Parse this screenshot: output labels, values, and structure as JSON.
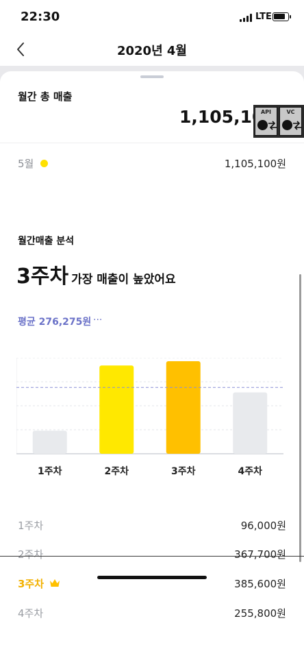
{
  "status": {
    "time": "22:30",
    "network": "LTE"
  },
  "nav": {
    "title": "2020년 4월"
  },
  "summary": {
    "title": "월간 총 매출",
    "total": "1,105,100",
    "month_label": "5월",
    "month_value": "1,105,100원"
  },
  "overlay": {
    "api_label": "API",
    "vc_label": "VC"
  },
  "analysis": {
    "title": "월간매출 분석",
    "headline_week": "3주차",
    "headline_text": "가장 매출이 높았어요",
    "average_label": "평균 276,275원",
    "more": "···"
  },
  "chart_data": {
    "type": "bar",
    "categories": [
      "1주차",
      "2주차",
      "3주차",
      "4주차"
    ],
    "values": [
      96000,
      367700,
      385600,
      255800
    ],
    "average": 276275,
    "ylim": [
      0,
      400000
    ],
    "grid": true,
    "colors": [
      "#e8eaed",
      "#ffe800",
      "#ffc000",
      "#e8eaed"
    ],
    "average_line_color": "#8a8fd6"
  },
  "weekly": [
    {
      "label": "1주차",
      "value": "96,000원",
      "best": false
    },
    {
      "label": "2주차",
      "value": "367,700원",
      "best": false
    },
    {
      "label": "3주차",
      "value": "385,600원",
      "best": true
    },
    {
      "label": "4주차",
      "value": "255,800원",
      "best": false
    }
  ]
}
